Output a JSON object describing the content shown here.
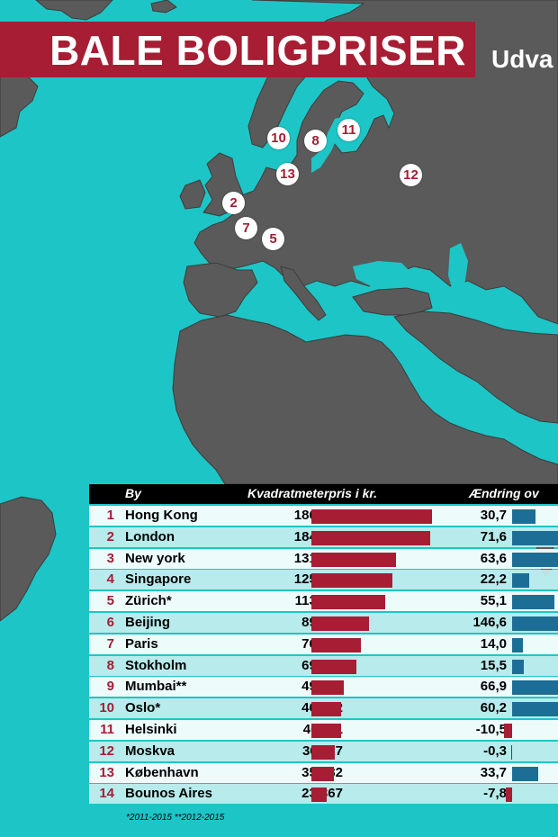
{
  "header": {
    "title": "BALE BOLIGPRISER",
    "subtitle": "Udva"
  },
  "colors": {
    "ocean": "#1ec5c6",
    "land": "#5a5a5a",
    "accent": "#a61d34",
    "change_bar": "#1d6e96"
  },
  "map_markers": [
    "10",
    "8",
    "11",
    "13",
    "12",
    "2",
    "7",
    "5"
  ],
  "chart_data": {
    "type": "table",
    "columns": [
      "By",
      "Kvadratmeterpris i kr.",
      "Ændring ov"
    ],
    "rows": [
      {
        "rank": "1",
        "city": "Hong Kong",
        "price": 186538,
        "price_label": "186.538",
        "change": 30.7,
        "change_label": "30,7"
      },
      {
        "rank": "2",
        "city": "London",
        "price": 184435,
        "price_label": "184.435",
        "change": 71.6,
        "change_label": "71,6"
      },
      {
        "rank": "3",
        "city": "New york",
        "price": 131125,
        "price_label": "131.125",
        "change": 63.6,
        "change_label": "63,6"
      },
      {
        "rank": "4",
        "city": "Singapore",
        "price": 125240,
        "price_label": "125.240",
        "change": 22.2,
        "change_label": "22,2"
      },
      {
        "rank": "5",
        "city": "Zürich*",
        "price": 113456,
        "price_label": "113.456",
        "change": 55.1,
        "change_label": "55,1"
      },
      {
        "rank": "6",
        "city": "Beijing",
        "price": 89442,
        "price_label": "89.442",
        "change": 146.6,
        "change_label": "146,6"
      },
      {
        "rank": "7",
        "city": "Paris",
        "price": 76009,
        "price_label": "76.009",
        "change": 14.0,
        "change_label": "14,0"
      },
      {
        "rank": "8",
        "city": "Stokholm",
        "price": 69062,
        "price_label": "69.062",
        "change": 15.5,
        "change_label": "15,5"
      },
      {
        "rank": "9",
        "city": "Mumbai**",
        "price": 49870,
        "price_label": "49.870",
        "change": 66.9,
        "change_label": "66,9"
      },
      {
        "rank": "10",
        "city": "Oslo*",
        "price": 46252,
        "price_label": "46.252",
        "change": 60.2,
        "change_label": "60,2"
      },
      {
        "rank": "11",
        "city": "Helsinki",
        "price": 46111,
        "price_label": "46.111",
        "change": -10.5,
        "change_label": "-10,5"
      },
      {
        "rank": "12",
        "city": "Moskva",
        "price": 36117,
        "price_label": "36.117",
        "change": -0.3,
        "change_label": "-0,3"
      },
      {
        "rank": "13",
        "city": "København",
        "price": 35382,
        "price_label": "35.382",
        "change": 33.7,
        "change_label": "33,7"
      },
      {
        "rank": "14",
        "city": "Bounos Aires",
        "price": 23367,
        "price_label": "23.367",
        "change": -7.8,
        "change_label": "-7,8"
      }
    ]
  },
  "footnote": "*2011-2015   **2012-2015"
}
